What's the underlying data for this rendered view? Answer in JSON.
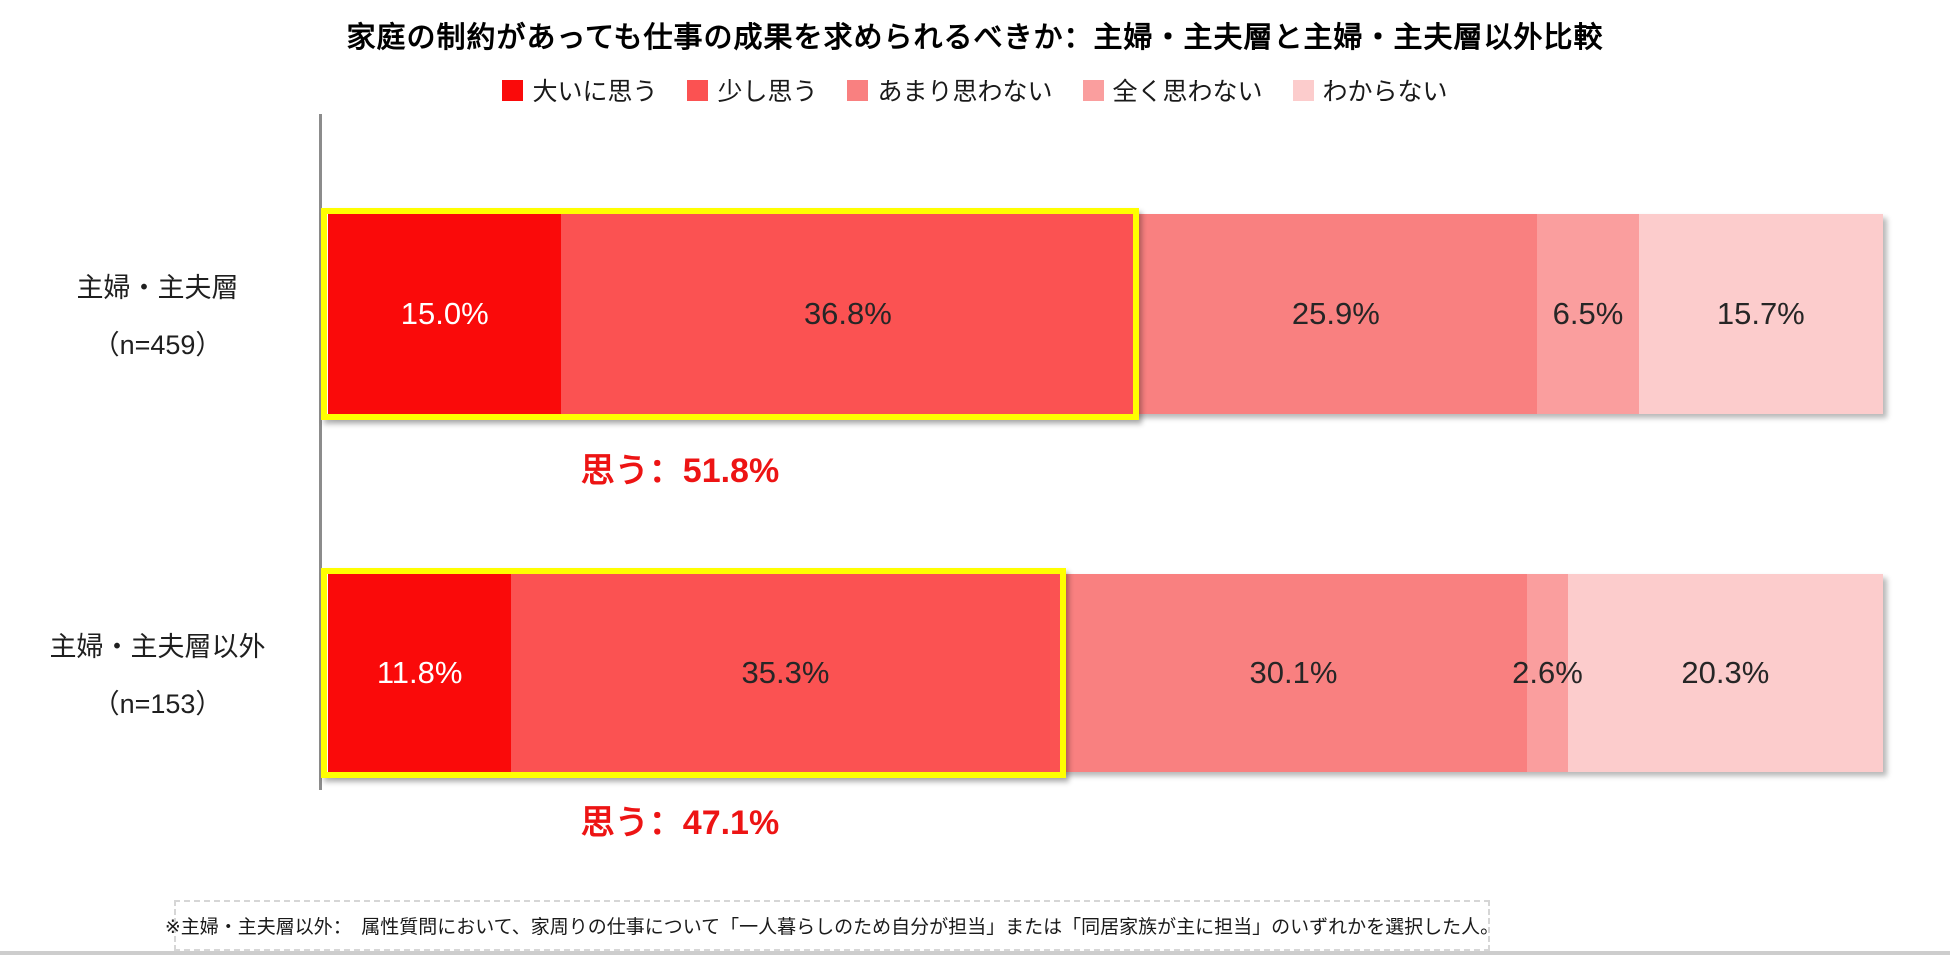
{
  "title": "家庭の制約があっても仕事の成果を求められるべきか：主婦・主夫層と主婦・主夫層以外比較",
  "legend": [
    {
      "label": "大いに思う",
      "color": "#FA0A0A"
    },
    {
      "label": "少し思う",
      "color": "#FB5252"
    },
    {
      "label": "あまり思わない",
      "color": "#F98080"
    },
    {
      "label": "全く思わない",
      "color": "#FA9E9E"
    },
    {
      "label": "わからない",
      "color": "#FCCCCC"
    }
  ],
  "rows": [
    {
      "category": "主婦・主夫層",
      "n_label": "（n=459）",
      "values": [
        15.0,
        36.8,
        25.9,
        6.5,
        15.7
      ],
      "value_labels": [
        "15.0%",
        "36.8%",
        "25.9%",
        "6.5%",
        "15.7%"
      ],
      "think_total_pct": 51.8,
      "annotation": "思う：51.8%"
    },
    {
      "category": "主婦・主夫層以外",
      "n_label": "（n=153）",
      "values": [
        11.8,
        35.3,
        30.1,
        2.6,
        20.3
      ],
      "value_labels": [
        "11.8%",
        "35.3%",
        "30.1%",
        "2.6%",
        "20.3%"
      ],
      "think_total_pct": 47.1,
      "annotation": "思う：47.1%"
    }
  ],
  "chart_data": {
    "type": "bar",
    "subtype": "stacked-horizontal",
    "title": "家庭の制約があっても仕事の成果を求められるべきか：主婦・主夫層と主婦・主夫層以外比較",
    "categories": [
      "主婦・主夫層（n=459）",
      "主婦・主夫層以外（n=153）"
    ],
    "series": [
      {
        "name": "大いに思う",
        "values": [
          15.0,
          11.8
        ]
      },
      {
        "name": "少し思う",
        "values": [
          36.8,
          35.3
        ]
      },
      {
        "name": "あまり思わない",
        "values": [
          25.9,
          30.1
        ]
      },
      {
        "name": "全く思わない",
        "values": [
          6.5,
          2.6
        ]
      },
      {
        "name": "わからない",
        "values": [
          15.7,
          20.3
        ]
      }
    ],
    "annotations": [
      "思う：51.8%",
      "思う：47.1%"
    ],
    "xlim": [
      0,
      100
    ],
    "unit": "%",
    "legend_position": "top",
    "grid": false,
    "highlight": "yellow box around 大いに思う+少し思う segments of each bar"
  },
  "footnote": "※主婦・主夫層以外：　属性質問において、家周りの仕事について「一人暮らしのため自分が担当」または「同居家族が主に担当」のいずれかを選択した人。",
  "colors": {
    "highlight_border": "#FFFF00",
    "annotation_text": "#ED1414",
    "axis_line": "#8C8C8C",
    "value_label_dark": "#262626",
    "value_label_light": "#FFFFFF"
  }
}
